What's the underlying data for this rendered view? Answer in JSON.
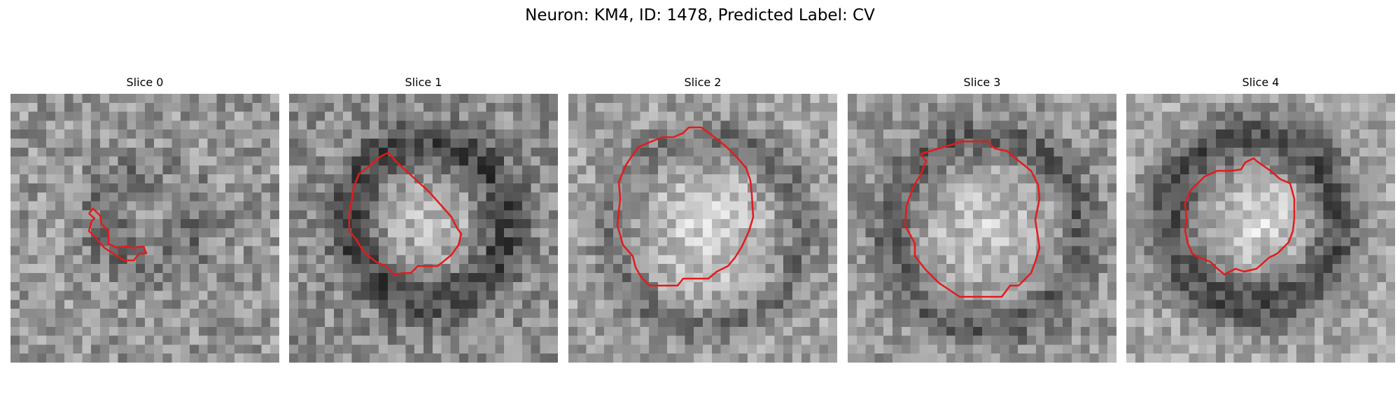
{
  "figure": {
    "title": "Neuron: KM4, ID: 1478, Predicted Label: CV"
  },
  "overlay_color": "#e41a1c",
  "slices": [
    {
      "title": "Slice 0"
    },
    {
      "title": "Slice 1"
    },
    {
      "title": "Slice 2"
    },
    {
      "title": "Slice 3"
    },
    {
      "title": "Slice 4"
    }
  ]
}
